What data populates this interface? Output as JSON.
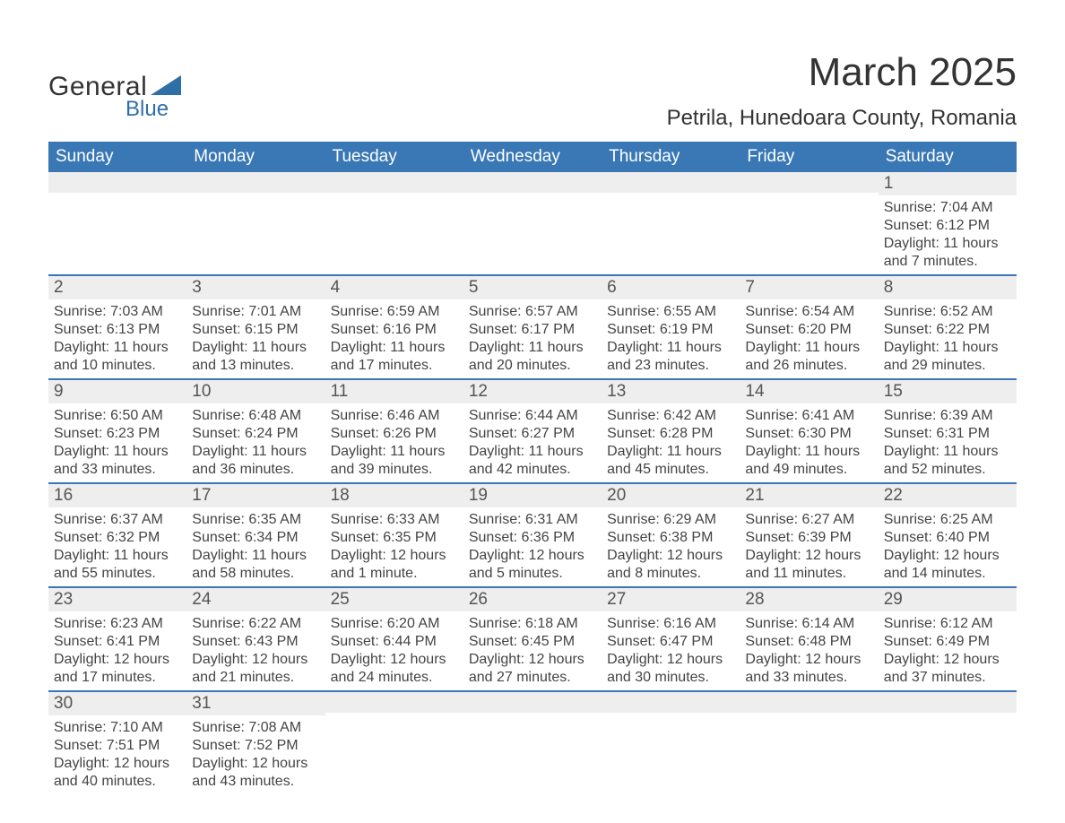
{
  "colors": {
    "header_bg": "#3a78b5",
    "header_text": "#ffffff",
    "daynum_bg": "#eeeeee",
    "daynum_text": "#555555",
    "body_text": "#444444",
    "row_border": "#3a78b5",
    "page_bg": "#ffffff",
    "logo_text": "#333333",
    "logo_blue": "#2f6fa7"
  },
  "logo": {
    "general": "General",
    "blue": "Blue",
    "triangle_fill": "#2f6fa7"
  },
  "title": "March 2025",
  "location": "Petrila, Hunedoara County, Romania",
  "day_headers": [
    "Sunday",
    "Monday",
    "Tuesday",
    "Wednesday",
    "Thursday",
    "Friday",
    "Saturday"
  ],
  "weeks": [
    [
      {
        "n": ""
      },
      {
        "n": ""
      },
      {
        "n": ""
      },
      {
        "n": ""
      },
      {
        "n": ""
      },
      {
        "n": ""
      },
      {
        "n": "1",
        "sr": "Sunrise: 7:04 AM",
        "ss": "Sunset: 6:12 PM",
        "dl1": "Daylight: 11 hours",
        "dl2": "and 7 minutes."
      }
    ],
    [
      {
        "n": "2",
        "sr": "Sunrise: 7:03 AM",
        "ss": "Sunset: 6:13 PM",
        "dl1": "Daylight: 11 hours",
        "dl2": "and 10 minutes."
      },
      {
        "n": "3",
        "sr": "Sunrise: 7:01 AM",
        "ss": "Sunset: 6:15 PM",
        "dl1": "Daylight: 11 hours",
        "dl2": "and 13 minutes."
      },
      {
        "n": "4",
        "sr": "Sunrise: 6:59 AM",
        "ss": "Sunset: 6:16 PM",
        "dl1": "Daylight: 11 hours",
        "dl2": "and 17 minutes."
      },
      {
        "n": "5",
        "sr": "Sunrise: 6:57 AM",
        "ss": "Sunset: 6:17 PM",
        "dl1": "Daylight: 11 hours",
        "dl2": "and 20 minutes."
      },
      {
        "n": "6",
        "sr": "Sunrise: 6:55 AM",
        "ss": "Sunset: 6:19 PM",
        "dl1": "Daylight: 11 hours",
        "dl2": "and 23 minutes."
      },
      {
        "n": "7",
        "sr": "Sunrise: 6:54 AM",
        "ss": "Sunset: 6:20 PM",
        "dl1": "Daylight: 11 hours",
        "dl2": "and 26 minutes."
      },
      {
        "n": "8",
        "sr": "Sunrise: 6:52 AM",
        "ss": "Sunset: 6:22 PM",
        "dl1": "Daylight: 11 hours",
        "dl2": "and 29 minutes."
      }
    ],
    [
      {
        "n": "9",
        "sr": "Sunrise: 6:50 AM",
        "ss": "Sunset: 6:23 PM",
        "dl1": "Daylight: 11 hours",
        "dl2": "and 33 minutes."
      },
      {
        "n": "10",
        "sr": "Sunrise: 6:48 AM",
        "ss": "Sunset: 6:24 PM",
        "dl1": "Daylight: 11 hours",
        "dl2": "and 36 minutes."
      },
      {
        "n": "11",
        "sr": "Sunrise: 6:46 AM",
        "ss": "Sunset: 6:26 PM",
        "dl1": "Daylight: 11 hours",
        "dl2": "and 39 minutes."
      },
      {
        "n": "12",
        "sr": "Sunrise: 6:44 AM",
        "ss": "Sunset: 6:27 PM",
        "dl1": "Daylight: 11 hours",
        "dl2": "and 42 minutes."
      },
      {
        "n": "13",
        "sr": "Sunrise: 6:42 AM",
        "ss": "Sunset: 6:28 PM",
        "dl1": "Daylight: 11 hours",
        "dl2": "and 45 minutes."
      },
      {
        "n": "14",
        "sr": "Sunrise: 6:41 AM",
        "ss": "Sunset: 6:30 PM",
        "dl1": "Daylight: 11 hours",
        "dl2": "and 49 minutes."
      },
      {
        "n": "15",
        "sr": "Sunrise: 6:39 AM",
        "ss": "Sunset: 6:31 PM",
        "dl1": "Daylight: 11 hours",
        "dl2": "and 52 minutes."
      }
    ],
    [
      {
        "n": "16",
        "sr": "Sunrise: 6:37 AM",
        "ss": "Sunset: 6:32 PM",
        "dl1": "Daylight: 11 hours",
        "dl2": "and 55 minutes."
      },
      {
        "n": "17",
        "sr": "Sunrise: 6:35 AM",
        "ss": "Sunset: 6:34 PM",
        "dl1": "Daylight: 11 hours",
        "dl2": "and 58 minutes."
      },
      {
        "n": "18",
        "sr": "Sunrise: 6:33 AM",
        "ss": "Sunset: 6:35 PM",
        "dl1": "Daylight: 12 hours",
        "dl2": "and 1 minute."
      },
      {
        "n": "19",
        "sr": "Sunrise: 6:31 AM",
        "ss": "Sunset: 6:36 PM",
        "dl1": "Daylight: 12 hours",
        "dl2": "and 5 minutes."
      },
      {
        "n": "20",
        "sr": "Sunrise: 6:29 AM",
        "ss": "Sunset: 6:38 PM",
        "dl1": "Daylight: 12 hours",
        "dl2": "and 8 minutes."
      },
      {
        "n": "21",
        "sr": "Sunrise: 6:27 AM",
        "ss": "Sunset: 6:39 PM",
        "dl1": "Daylight: 12 hours",
        "dl2": "and 11 minutes."
      },
      {
        "n": "22",
        "sr": "Sunrise: 6:25 AM",
        "ss": "Sunset: 6:40 PM",
        "dl1": "Daylight: 12 hours",
        "dl2": "and 14 minutes."
      }
    ],
    [
      {
        "n": "23",
        "sr": "Sunrise: 6:23 AM",
        "ss": "Sunset: 6:41 PM",
        "dl1": "Daylight: 12 hours",
        "dl2": "and 17 minutes."
      },
      {
        "n": "24",
        "sr": "Sunrise: 6:22 AM",
        "ss": "Sunset: 6:43 PM",
        "dl1": "Daylight: 12 hours",
        "dl2": "and 21 minutes."
      },
      {
        "n": "25",
        "sr": "Sunrise: 6:20 AM",
        "ss": "Sunset: 6:44 PM",
        "dl1": "Daylight: 12 hours",
        "dl2": "and 24 minutes."
      },
      {
        "n": "26",
        "sr": "Sunrise: 6:18 AM",
        "ss": "Sunset: 6:45 PM",
        "dl1": "Daylight: 12 hours",
        "dl2": "and 27 minutes."
      },
      {
        "n": "27",
        "sr": "Sunrise: 6:16 AM",
        "ss": "Sunset: 6:47 PM",
        "dl1": "Daylight: 12 hours",
        "dl2": "and 30 minutes."
      },
      {
        "n": "28",
        "sr": "Sunrise: 6:14 AM",
        "ss": "Sunset: 6:48 PM",
        "dl1": "Daylight: 12 hours",
        "dl2": "and 33 minutes."
      },
      {
        "n": "29",
        "sr": "Sunrise: 6:12 AM",
        "ss": "Sunset: 6:49 PM",
        "dl1": "Daylight: 12 hours",
        "dl2": "and 37 minutes."
      }
    ],
    [
      {
        "n": "30",
        "sr": "Sunrise: 7:10 AM",
        "ss": "Sunset: 7:51 PM",
        "dl1": "Daylight: 12 hours",
        "dl2": "and 40 minutes."
      },
      {
        "n": "31",
        "sr": "Sunrise: 7:08 AM",
        "ss": "Sunset: 7:52 PM",
        "dl1": "Daylight: 12 hours",
        "dl2": "and 43 minutes."
      },
      {
        "n": ""
      },
      {
        "n": ""
      },
      {
        "n": ""
      },
      {
        "n": ""
      },
      {
        "n": ""
      }
    ]
  ]
}
